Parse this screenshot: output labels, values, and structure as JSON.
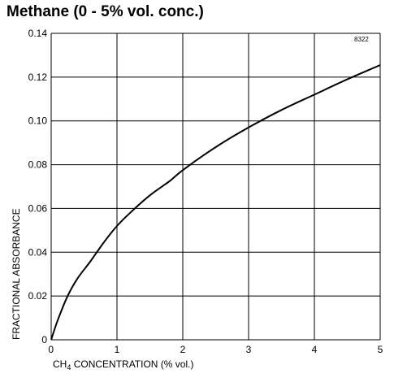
{
  "chart_data": {
    "type": "line",
    "title": "Methane (0 - 5% vol. conc.)",
    "figure_ref": "8322",
    "xlabel_main": "CH",
    "xlabel_sub": "4",
    "xlabel_rest": " CONCENTRATION (% vol.)",
    "ylabel": "FRACTIONAL ABSORBANCE",
    "xlim": [
      0,
      5
    ],
    "ylim": [
      0,
      0.14
    ],
    "x_ticks": [
      "0",
      "1",
      "2",
      "3",
      "4",
      "5"
    ],
    "y_ticks": [
      "0",
      "0.02",
      "0.04",
      "0.06",
      "0.08",
      "0.10",
      "0.12",
      "0.14"
    ],
    "grid": true,
    "series": [
      {
        "x": [
          0,
          0.1,
          0.25,
          0.4,
          0.6,
          0.8,
          1.0,
          1.2,
          1.5,
          1.8,
          2.0,
          2.5,
          3.0,
          3.5,
          4.0,
          4.5,
          5.0
        ],
        "y": [
          0,
          0.009,
          0.02,
          0.028,
          0.036,
          0.0445,
          0.052,
          0.058,
          0.066,
          0.0725,
          0.0775,
          0.088,
          0.097,
          0.105,
          0.112,
          0.119,
          0.1255
        ]
      }
    ],
    "color": "#000000"
  }
}
